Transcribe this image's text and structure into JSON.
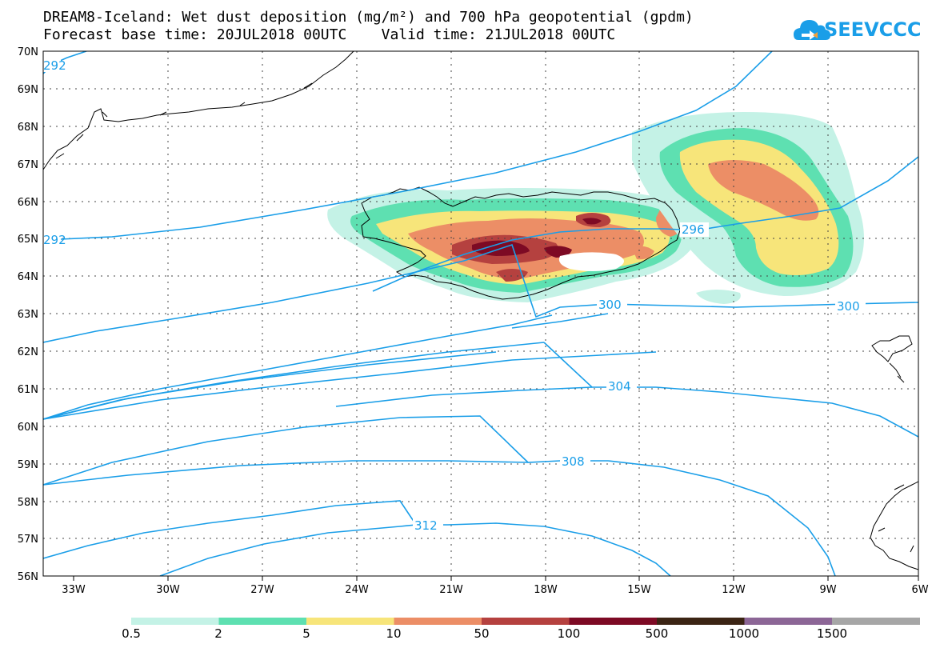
{
  "header": {
    "title_line1": "DREAM8-Iceland: Wet dust deposition (mg/m²) and 700 hPa geopotential (gpdm)",
    "title_line2": "Forecast base time: 20JUL2018 00UTC    Valid time: 21JUL2018 00UTC",
    "logo_text": "SEEVCCC"
  },
  "map": {
    "lon_labels": [
      "33W",
      "30W",
      "27W",
      "24W",
      "21W",
      "18W",
      "15W",
      "12W",
      "9W",
      "6W"
    ],
    "lat_labels": [
      "70N",
      "69N",
      "68N",
      "67N",
      "66N",
      "65N",
      "64N",
      "63N",
      "62N",
      "61N",
      "60N",
      "59N",
      "58N",
      "57N",
      "56N"
    ],
    "contour_labels": {
      "c292a": "292",
      "c292b": "292",
      "c296": "296",
      "c300a": "300",
      "c300b": "300",
      "c304": "304",
      "c308": "308",
      "c312": "312"
    },
    "contour_color": "#1a9ee8",
    "coastline_color": "#000000"
  },
  "colorbar": {
    "labels": [
      "0.5",
      "2",
      "5",
      "10",
      "50",
      "100",
      "500",
      "1000",
      "1500"
    ],
    "colors": [
      "#c4f2e6",
      "#5ee0b1",
      "#f7e57a",
      "#ec8e66",
      "#b5413f",
      "#7d0a24",
      "#3b2414",
      "#8c6696",
      "#a6a6a6"
    ]
  }
}
